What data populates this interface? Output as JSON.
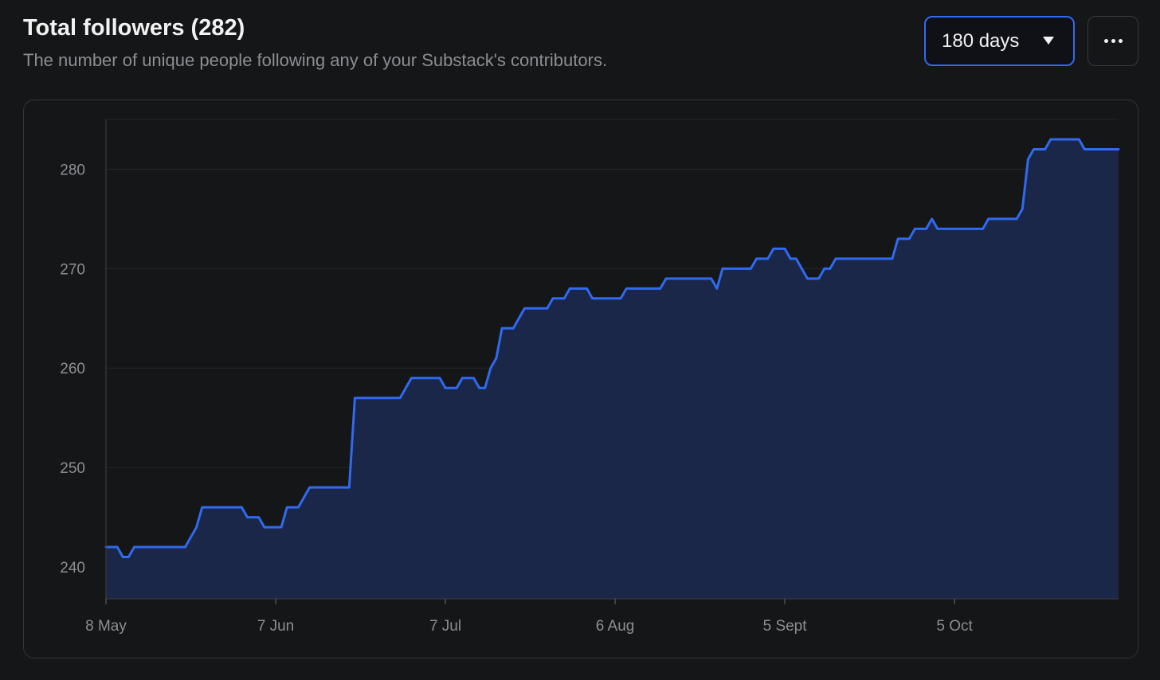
{
  "header": {
    "title": "Total followers (282)",
    "subtitle": "The number of unique people following any of your Substack's contributors."
  },
  "controls": {
    "range_label": "180 days",
    "range_icon": "caret-down-icon",
    "more_icon": "more-horizontal-icon"
  },
  "colors": {
    "line": "#2f6af0",
    "area": "#1b2748",
    "grid": "#26272c",
    "background": "#151618"
  },
  "chart_data": {
    "type": "area",
    "title": "",
    "xlabel": "",
    "ylabel": "",
    "ylim": [
      236.8,
      285
    ],
    "yticks": [
      240,
      250,
      260,
      270,
      280
    ],
    "x_start_label": "8 May",
    "xticks": [
      {
        "label": "8 May",
        "day": 0
      },
      {
        "label": "7 Jun",
        "day": 30
      },
      {
        "label": "7 Jul",
        "day": 60
      },
      {
        "label": "6 Aug",
        "day": 90
      },
      {
        "label": "5 Sept",
        "day": 120
      },
      {
        "label": "5 Oct",
        "day": 150
      }
    ],
    "grid": true,
    "series": [
      {
        "name": "",
        "points": [
          [
            0,
            242
          ],
          [
            2,
            242
          ],
          [
            3,
            241
          ],
          [
            4,
            241
          ],
          [
            5,
            242
          ],
          [
            14,
            242
          ],
          [
            15,
            243
          ],
          [
            16,
            244
          ],
          [
            17,
            246
          ],
          [
            24,
            246
          ],
          [
            25,
            245
          ],
          [
            27,
            245
          ],
          [
            28,
            244
          ],
          [
            31,
            244
          ],
          [
            32,
            246
          ],
          [
            34,
            246
          ],
          [
            36,
            248
          ],
          [
            43,
            248
          ],
          [
            44,
            257
          ],
          [
            52,
            257
          ],
          [
            54,
            259
          ],
          [
            59,
            259
          ],
          [
            60,
            258
          ],
          [
            62,
            258
          ],
          [
            63,
            259
          ],
          [
            65,
            259
          ],
          [
            66,
            258
          ],
          [
            67,
            258
          ],
          [
            68,
            260
          ],
          [
            69,
            261
          ],
          [
            70,
            264
          ],
          [
            72,
            264
          ],
          [
            74,
            266
          ],
          [
            78,
            266
          ],
          [
            79,
            267
          ],
          [
            81,
            267
          ],
          [
            82,
            268
          ],
          [
            85,
            268
          ],
          [
            86,
            267
          ],
          [
            91,
            267
          ],
          [
            92,
            268
          ],
          [
            98,
            268
          ],
          [
            99,
            269
          ],
          [
            107,
            269
          ],
          [
            108,
            268
          ],
          [
            109,
            270
          ],
          [
            114,
            270
          ],
          [
            115,
            271
          ],
          [
            117,
            271
          ],
          [
            118,
            272
          ],
          [
            120,
            272
          ],
          [
            121,
            271
          ],
          [
            122,
            271
          ],
          [
            124,
            269
          ],
          [
            126,
            269
          ],
          [
            127,
            270
          ],
          [
            128,
            270
          ],
          [
            129,
            271
          ],
          [
            139,
            271
          ],
          [
            140,
            273
          ],
          [
            142,
            273
          ],
          [
            143,
            274
          ],
          [
            145,
            274
          ],
          [
            146,
            275
          ],
          [
            147,
            274
          ],
          [
            155,
            274
          ],
          [
            156,
            275
          ],
          [
            161,
            275
          ],
          [
            162,
            276
          ],
          [
            163,
            281
          ],
          [
            164,
            282
          ],
          [
            166,
            282
          ],
          [
            167,
            283
          ],
          [
            172,
            283
          ],
          [
            173,
            282
          ],
          [
            179,
            282
          ]
        ]
      }
    ]
  }
}
